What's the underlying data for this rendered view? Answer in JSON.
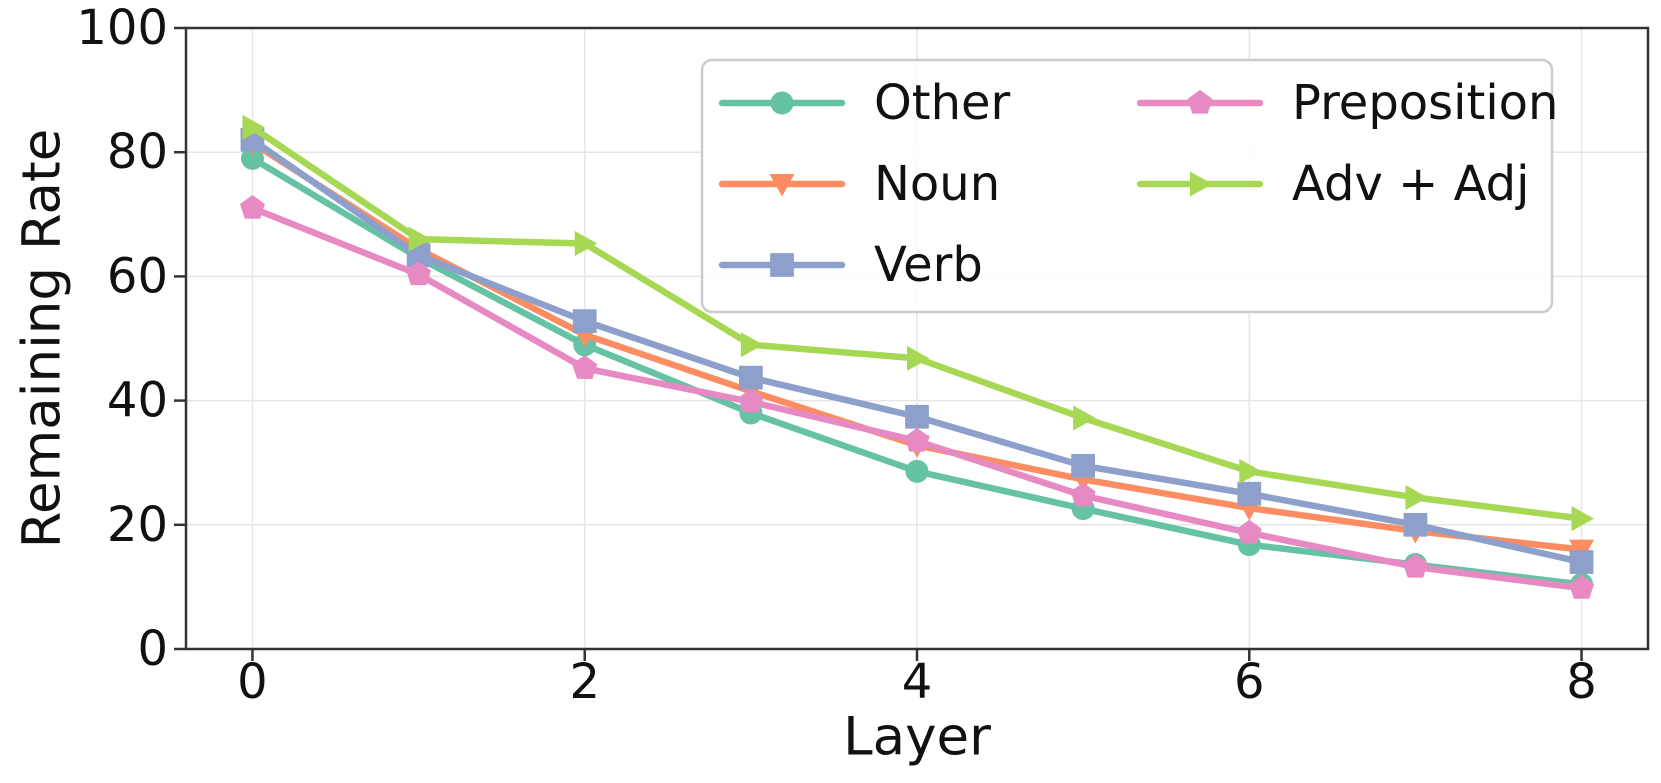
{
  "chart_data": {
    "type": "line",
    "title": "",
    "xlabel": "Layer",
    "ylabel": "Remaining Rate",
    "x": [
      0,
      1,
      2,
      3,
      4,
      5,
      6,
      7,
      8
    ],
    "xlim": [
      -0.4,
      8.4
    ],
    "ylim": [
      0,
      100
    ],
    "xticks": [
      0,
      2,
      4,
      6,
      8
    ],
    "yticks": [
      0,
      20,
      40,
      60,
      80,
      100
    ],
    "grid": true,
    "grid_color": "#e6e6e6",
    "spine_color": "#333333",
    "legend_position": "upper right",
    "legend_border_color": "#cccccc",
    "series": [
      {
        "name": "Other",
        "color": "#66c2a5",
        "marker": "circle",
        "values": [
          79.0,
          63.0,
          49.0,
          38.0,
          28.6,
          22.6,
          16.8,
          13.6,
          10.4
        ]
      },
      {
        "name": "Noun",
        "color": "#fc8d62",
        "marker": "triangle-down",
        "values": [
          81.5,
          64.4,
          50.6,
          41.5,
          32.8,
          27.3,
          22.7,
          19.0,
          16.0
        ]
      },
      {
        "name": "Verb",
        "color": "#8da0cb",
        "marker": "square",
        "values": [
          82.0,
          63.4,
          52.8,
          43.7,
          37.4,
          29.5,
          25.0,
          20.0,
          14.0
        ]
      },
      {
        "name": "Preposition",
        "color": "#e78ac3",
        "marker": "pentagon",
        "values": [
          71.0,
          60.3,
          45.2,
          39.8,
          33.5,
          24.7,
          18.7,
          13.2,
          9.8
        ]
      },
      {
        "name": "Adv + Adj",
        "color": "#a6d854",
        "marker": "triangle-right",
        "values": [
          84.0,
          66.0,
          65.3,
          49.0,
          46.8,
          37.2,
          28.6,
          24.4,
          21.0
        ]
      }
    ]
  }
}
